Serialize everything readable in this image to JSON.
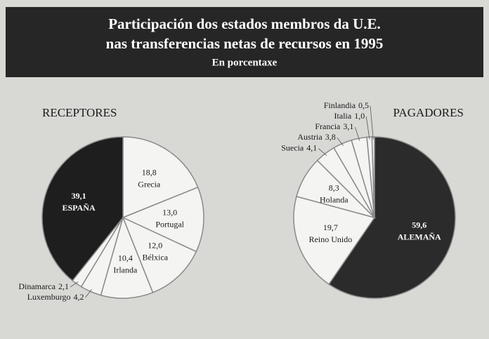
{
  "header": {
    "title": [
      "Participación dos estados membros da U.E.",
      "nas transferencias netas de recursos en 1995"
    ],
    "subtitle": "En porcentaxe"
  },
  "chart_data": [
    {
      "type": "pie",
      "title": "RECEPTORES",
      "categories": [
        "Grecia",
        "Portugal",
        "Bélxica",
        "Irlanda",
        "Luxemburgo",
        "Dinamarca",
        "ESPAÑA"
      ],
      "values": [
        18.8,
        13.0,
        12.0,
        10.4,
        4.2,
        2.1,
        39.1
      ],
      "value_labels": [
        "18,8",
        "13,0",
        "12,0",
        "10,4",
        "4,2",
        "2,1",
        "39,1"
      ],
      "colors": [
        "#f4f4f2",
        "#f4f4f2",
        "#f4f4f2",
        "#f4f4f2",
        "#f4f4f2",
        "#f4f4f2",
        "#1e1e1e"
      ]
    },
    {
      "type": "pie",
      "title": "PAGADORES",
      "categories": [
        "ALEMAÑA",
        "Reino Unido",
        "Holanda",
        "Suecia",
        "Austria",
        "Francia",
        "Italia",
        "Finlandia"
      ],
      "values": [
        59.6,
        19.7,
        8.3,
        4.1,
        3.8,
        3.1,
        1.0,
        0.5
      ],
      "value_labels": [
        "59,6",
        "19,7",
        "8,3",
        "4,1",
        "3,8",
        "3,1",
        "1,0",
        "0,5"
      ],
      "colors": [
        "#2b2b2b",
        "#f4f4f2",
        "#f4f4f2",
        "#f4f4f2",
        "#f4f4f2",
        "#f4f4f2",
        "#f4f4f2",
        "#f4f4f2"
      ]
    }
  ]
}
